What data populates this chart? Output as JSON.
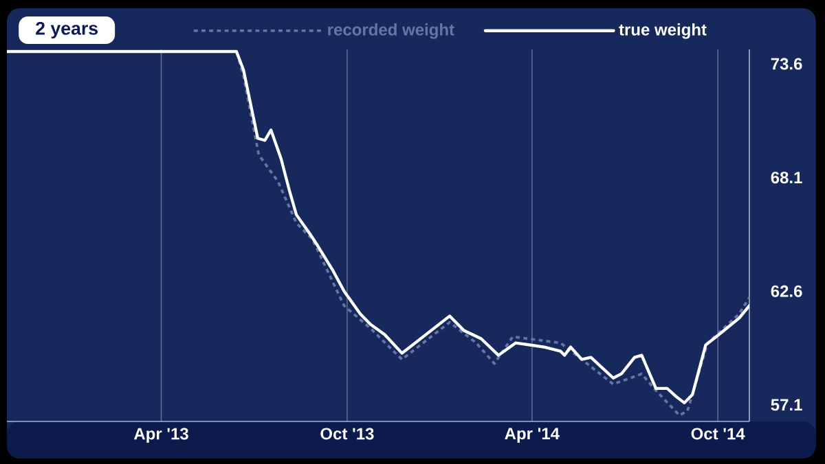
{
  "chart_data": {
    "type": "line",
    "annotations": [
      "2 years"
    ],
    "legend": "top",
    "grid": "x",
    "xlim": [
      "2012-10-31",
      "2014-11-01"
    ],
    "ylim": [
      56.3,
      74.3
    ],
    "xticks": [
      {
        "value": "2013-04-01",
        "label": "Apr '13"
      },
      {
        "value": "2013-10-01",
        "label": "Oct '13"
      },
      {
        "value": "2014-04-01",
        "label": "Apr '14"
      },
      {
        "value": "2014-10-01",
        "label": "Oct '14"
      }
    ],
    "yticks": [
      57.1,
      62.6,
      68.1,
      73.6
    ],
    "series": [
      {
        "name": "recorded weight",
        "color": "#6676a4",
        "line_style": "dotted",
        "x": [
          "2012-10-31",
          "2013-06-14",
          "2013-06-21",
          "2013-07-06",
          "2013-07-25",
          "2013-08-12",
          "2013-08-28",
          "2013-09-28",
          "2013-10-24",
          "2013-11-24",
          "2014-01-10",
          "2014-02-05",
          "2014-02-23",
          "2014-03-13",
          "2014-04-29",
          "2014-05-20",
          "2014-06-20",
          "2014-07-18",
          "2014-08-01",
          "2014-08-24",
          "2014-09-01",
          "2014-09-21",
          "2014-10-22",
          "2014-11-01"
        ],
        "values": [
          74.2,
          74.2,
          73.0,
          69.2,
          67.9,
          65.9,
          65.1,
          61.9,
          60.8,
          59.3,
          61.1,
          60.1,
          59.1,
          60.4,
          60.1,
          59.3,
          58.1,
          58.6,
          57.8,
          56.6,
          56.8,
          60.1,
          61.5,
          62.3
        ]
      },
      {
        "name": "true weight",
        "color": "#ffffff",
        "line_style": "solid",
        "x": [
          "2012-10-31",
          "2013-06-14",
          "2013-06-21",
          "2013-07-05",
          "2013-07-12",
          "2013-07-18",
          "2013-07-28",
          "2013-08-05",
          "2013-08-12",
          "2013-08-25",
          "2013-09-02",
          "2013-09-17",
          "2013-09-28",
          "2013-10-14",
          "2013-10-24",
          "2013-11-07",
          "2013-11-24",
          "2014-01-10",
          "2014-01-24",
          "2014-02-10",
          "2014-02-27",
          "2014-03-16",
          "2014-04-13",
          "2014-04-29",
          "2014-05-03",
          "2014-05-09",
          "2014-05-20",
          "2014-05-29",
          "2014-06-20",
          "2014-06-28",
          "2014-07-11",
          "2014-07-18",
          "2014-08-01",
          "2014-08-12",
          "2014-08-21",
          "2014-08-29",
          "2014-09-06",
          "2014-09-19",
          "2014-10-02",
          "2014-10-22",
          "2014-11-01"
        ],
        "values": [
          74.2,
          74.2,
          73.3,
          70.0,
          69.9,
          70.4,
          69.0,
          67.5,
          66.3,
          65.4,
          64.8,
          63.6,
          62.6,
          61.5,
          61.0,
          60.5,
          59.6,
          61.4,
          60.7,
          60.3,
          59.5,
          60.1,
          59.9,
          59.7,
          59.5,
          59.9,
          59.3,
          59.4,
          58.4,
          58.6,
          59.4,
          59.5,
          57.9,
          57.9,
          57.5,
          57.2,
          57.6,
          60.0,
          60.5,
          61.3,
          61.9
        ]
      }
    ]
  }
}
